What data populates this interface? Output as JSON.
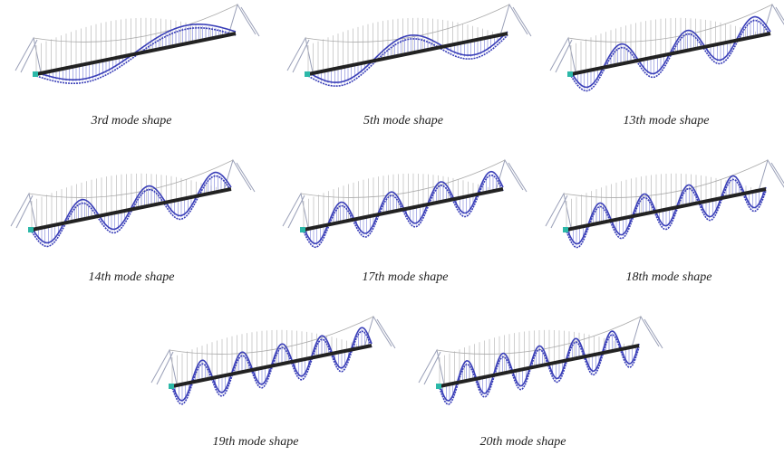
{
  "figure": {
    "panels": [
      {
        "caption": "3rd mode shape"
      },
      {
        "caption": "5th mode shape"
      },
      {
        "caption": "13th mode shape"
      },
      {
        "caption": "14th mode shape"
      },
      {
        "caption": "17th mode shape"
      },
      {
        "caption": "18th mode shape"
      },
      {
        "caption": "19th mode shape"
      },
      {
        "caption": "20th mode shape"
      }
    ]
  }
}
